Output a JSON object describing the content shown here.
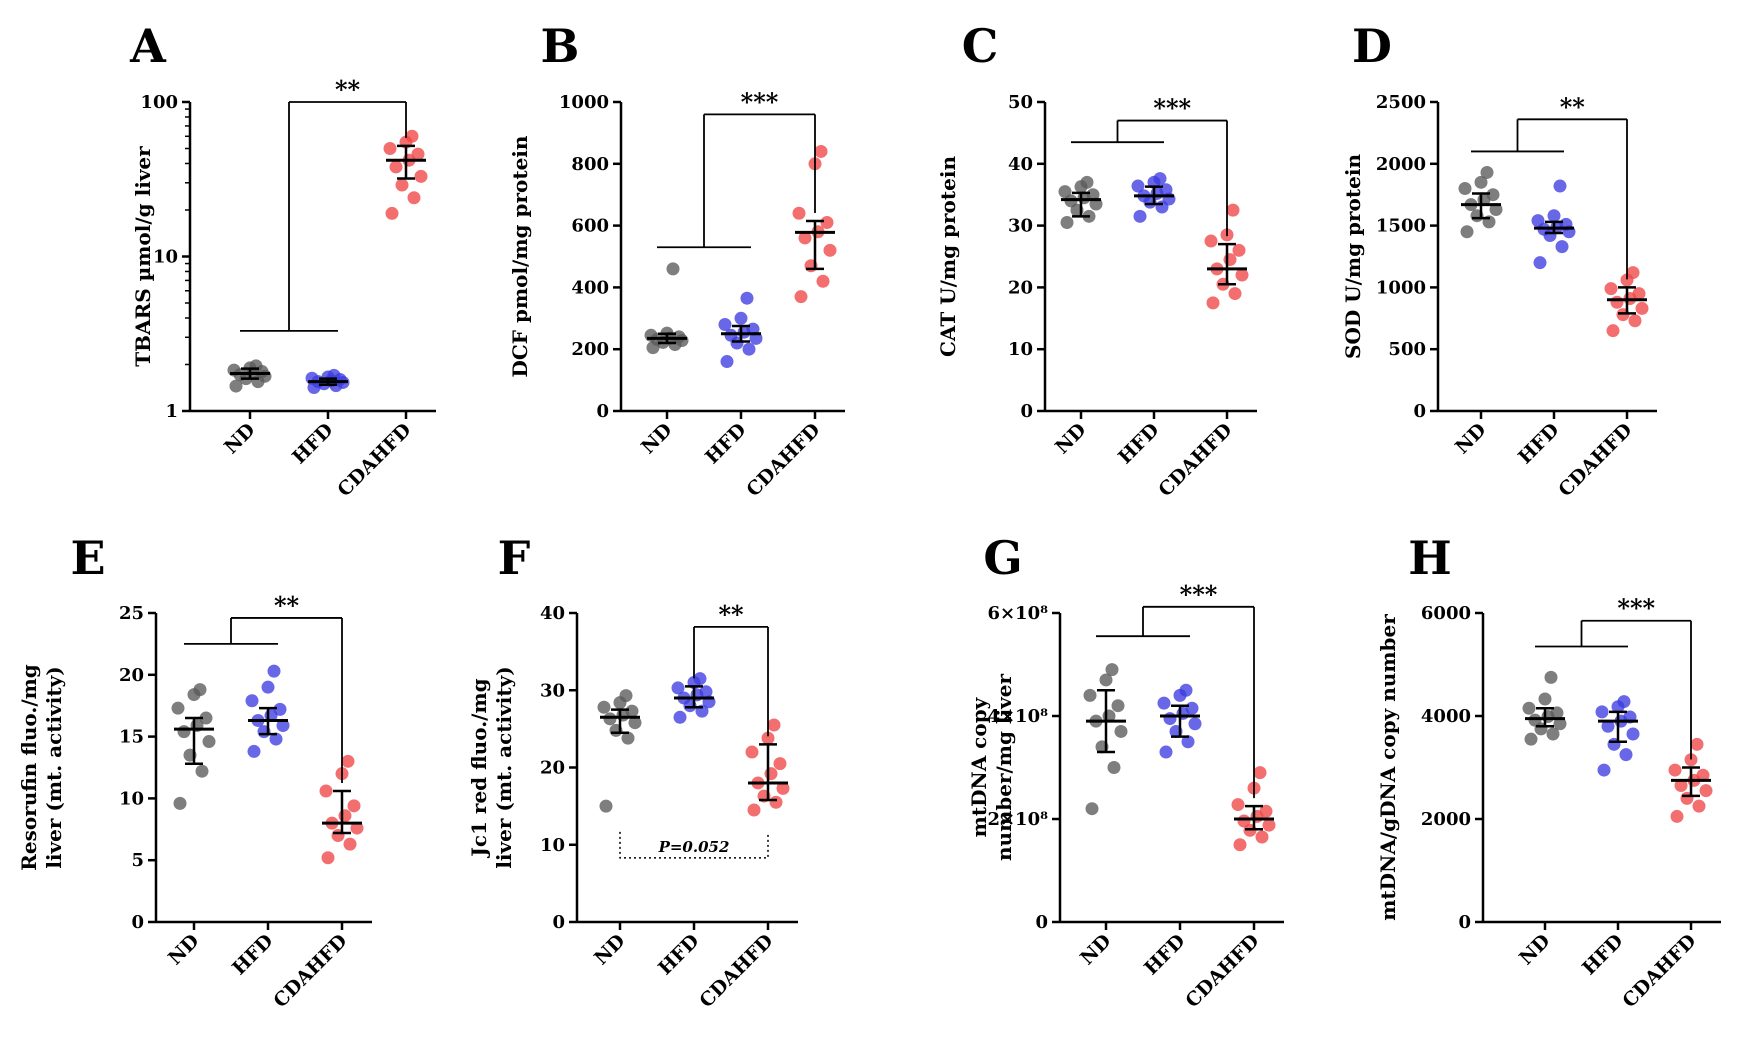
{
  "colors": {
    "ND": "#5a5a5a",
    "HFD": "#3c3ce0",
    "CDAHFD": "#f04646"
  },
  "chart_data": [
    {
      "letter": "A",
      "type": "scatter",
      "ylabel": "TBARS µmol/g liver",
      "scale": "log",
      "ylim": [
        1,
        100
      ],
      "yticks": [
        1,
        10,
        100
      ],
      "ytick_labels": [
        "1",
        "10",
        "100"
      ],
      "categories": [
        "ND",
        "HFD",
        "CDAHFD"
      ],
      "series": [
        {
          "category": "ND",
          "center": 1.75,
          "error": [
            1.62,
            1.88
          ],
          "values": [
            1.45,
            1.55,
            1.62,
            1.68,
            1.72,
            1.76,
            1.8,
            1.84,
            1.9,
            1.96
          ]
        },
        {
          "category": "HFD",
          "center": 1.55,
          "error": [
            1.48,
            1.62
          ],
          "values": [
            1.42,
            1.46,
            1.5,
            1.53,
            1.55,
            1.57,
            1.6,
            1.63,
            1.66,
            1.7
          ]
        },
        {
          "category": "CDAHFD",
          "center": 42,
          "error": [
            32,
            52
          ],
          "values": [
            19,
            24,
            29,
            33,
            38,
            42,
            46,
            50,
            55,
            60
          ]
        }
      ],
      "significance": [
        {
          "label": "**",
          "group": [
            "ND",
            "HFD"
          ],
          "target": "CDAHFD",
          "y": 3.3,
          "y_top": 100
        }
      ]
    },
    {
      "letter": "B",
      "type": "scatter",
      "ylabel": "DCF pmol/mg protein",
      "scale": "linear",
      "ylim": [
        0,
        1000
      ],
      "yticks": [
        0,
        200,
        400,
        600,
        800,
        1000
      ],
      "ytick_labels": [
        "0",
        "200",
        "400",
        "600",
        "800",
        "1000"
      ],
      "categories": [
        "ND",
        "HFD",
        "CDAHFD"
      ],
      "series": [
        {
          "category": "ND",
          "center": 235,
          "error": [
            220,
            250
          ],
          "values": [
            205,
            215,
            222,
            228,
            232,
            236,
            240,
            245,
            252,
            460
          ]
        },
        {
          "category": "HFD",
          "center": 250,
          "error": [
            225,
            275
          ],
          "values": [
            160,
            200,
            220,
            235,
            245,
            255,
            265,
            280,
            300,
            365
          ]
        },
        {
          "category": "CDAHFD",
          "center": 578,
          "error": [
            460,
            615
          ],
          "values": [
            370,
            420,
            470,
            520,
            560,
            580,
            610,
            640,
            800,
            840
          ]
        }
      ],
      "significance": [
        {
          "label": "***",
          "group": [
            "ND",
            "HFD"
          ],
          "target": "CDAHFD",
          "y": 530,
          "y_top": 960
        }
      ]
    },
    {
      "letter": "C",
      "type": "scatter",
      "ylabel": "CAT U/mg protein",
      "scale": "linear",
      "ylim": [
        0,
        50
      ],
      "yticks": [
        0,
        10,
        20,
        30,
        40,
        50
      ],
      "ytick_labels": [
        "0",
        "10",
        "20",
        "30",
        "40",
        "50"
      ],
      "categories": [
        "ND",
        "HFD",
        "CDAHFD"
      ],
      "series": [
        {
          "category": "ND",
          "center": 34.2,
          "error": [
            31.5,
            35.3
          ],
          "values": [
            30.5,
            31.5,
            32.5,
            33.5,
            34,
            34.5,
            35,
            35.5,
            36.3,
            37
          ]
        },
        {
          "category": "HFD",
          "center": 34.8,
          "error": [
            33.5,
            36.3
          ],
          "values": [
            31.5,
            33,
            33.8,
            34.3,
            34.8,
            35.2,
            35.8,
            36.4,
            37,
            37.6
          ]
        },
        {
          "category": "CDAHFD",
          "center": 23,
          "error": [
            20.5,
            27
          ],
          "values": [
            17.5,
            19,
            20.5,
            22,
            23,
            24.5,
            26,
            27.5,
            28.5,
            32.5
          ]
        }
      ],
      "significance": [
        {
          "label": "***",
          "group": [
            "ND",
            "HFD"
          ],
          "target": "CDAHFD",
          "y": 43.5,
          "y_top": 47
        }
      ]
    },
    {
      "letter": "D",
      "type": "scatter",
      "ylabel": "SOD U/mg protein",
      "scale": "linear",
      "ylim": [
        0,
        2500
      ],
      "yticks": [
        0,
        500,
        1000,
        1500,
        2000,
        2500
      ],
      "ytick_labels": [
        "0",
        "500",
        "1000",
        "1500",
        "2000",
        "2500"
      ],
      "categories": [
        "ND",
        "HFD",
        "CDAHFD"
      ],
      "series": [
        {
          "category": "ND",
          "center": 1670,
          "error": [
            1560,
            1760
          ],
          "values": [
            1450,
            1530,
            1580,
            1630,
            1670,
            1710,
            1750,
            1800,
            1850,
            1930
          ]
        },
        {
          "category": "HFD",
          "center": 1480,
          "error": [
            1440,
            1530
          ],
          "values": [
            1200,
            1330,
            1420,
            1450,
            1470,
            1490,
            1510,
            1540,
            1580,
            1820
          ]
        },
        {
          "category": "CDAHFD",
          "center": 900,
          "error": [
            790,
            1000
          ],
          "values": [
            650,
            730,
            780,
            830,
            880,
            910,
            950,
            990,
            1060,
            1120
          ]
        }
      ],
      "significance": [
        {
          "label": "**",
          "group": [
            "ND",
            "HFD"
          ],
          "target": "CDAHFD",
          "y": 2100,
          "y_top": 2360
        }
      ]
    },
    {
      "letter": "E",
      "type": "scatter",
      "ylabel": "Resorufin  fluo./mg liver (mt. activity)",
      "scale": "linear",
      "ylim": [
        0,
        25
      ],
      "yticks": [
        0,
        5,
        10,
        15,
        20,
        25
      ],
      "ytick_labels": [
        "0",
        "5",
        "10",
        "15",
        "20",
        "25"
      ],
      "categories": [
        "ND",
        "HFD",
        "CDAHFD"
      ],
      "series": [
        {
          "category": "ND",
          "center": 15.6,
          "error": [
            12.8,
            16.5
          ],
          "values": [
            9.6,
            12.2,
            13.5,
            14.6,
            15.4,
            15.9,
            16.5,
            17.3,
            18.4,
            18.8
          ]
        },
        {
          "category": "HFD",
          "center": 16.3,
          "error": [
            15.2,
            17.3
          ],
          "values": [
            13.8,
            14.8,
            15.4,
            15.9,
            16.3,
            16.7,
            17.2,
            17.9,
            19,
            20.3
          ]
        },
        {
          "category": "CDAHFD",
          "center": 8,
          "error": [
            7.2,
            10.6
          ],
          "values": [
            5.2,
            6.3,
            7,
            7.6,
            8,
            8.6,
            9.4,
            10.6,
            12,
            13
          ]
        }
      ],
      "significance": [
        {
          "label": "**",
          "group": [
            "ND",
            "HFD"
          ],
          "target": "CDAHFD",
          "y": 22.5,
          "y_top": 24.6
        }
      ]
    },
    {
      "letter": "F",
      "type": "scatter",
      "ylabel": "Jc1 red fluo./mg liver (mt. activity)",
      "scale": "linear",
      "ylim": [
        0,
        40
      ],
      "yticks": [
        0,
        10,
        20,
        30,
        40
      ],
      "ytick_labels": [
        "0",
        "10",
        "20",
        "30",
        "40"
      ],
      "categories": [
        "ND",
        "HFD",
        "CDAHFD"
      ],
      "series": [
        {
          "category": "ND",
          "center": 26.5,
          "error": [
            24.5,
            27.5
          ],
          "values": [
            15,
            23.8,
            24.8,
            25.8,
            26.3,
            26.8,
            27.3,
            27.8,
            28.4,
            29.3
          ]
        },
        {
          "category": "HFD",
          "center": 29,
          "error": [
            27.8,
            30.5
          ],
          "values": [
            26.5,
            27.3,
            28,
            28.5,
            29,
            29.4,
            29.8,
            30.3,
            31,
            31.5
          ]
        },
        {
          "category": "CDAHFD",
          "center": 18,
          "error": [
            15.8,
            23
          ],
          "values": [
            14.5,
            15.5,
            16.3,
            17.3,
            18,
            19.2,
            20.5,
            22,
            23.8,
            25.5
          ]
        }
      ],
      "significance": [
        {
          "label": "**",
          "group": [
            "HFD"
          ],
          "target": "CDAHFD",
          "y": 38.2,
          "y_top": 38.2
        }
      ],
      "p_note": {
        "label": "P=0.052",
        "from": "ND",
        "to": "CDAHFD",
        "y": 8.3
      }
    },
    {
      "letter": "G",
      "type": "scatter",
      "ylabel": "mtDNA copy number/mg liver",
      "scale": "linear",
      "ylim": [
        0,
        600000000
      ],
      "yticks": [
        0,
        200000000,
        400000000,
        600000000
      ],
      "ytick_labels": [
        "0",
        "2×10⁸",
        "4×10⁸",
        "6×10⁸"
      ],
      "categories": [
        "ND",
        "HFD",
        "CDAHFD"
      ],
      "series": [
        {
          "category": "ND",
          "center": 390000000,
          "error": [
            330000000,
            450000000
          ],
          "values": [
            220000000,
            300000000,
            340000000,
            370000000,
            390000000,
            400000000,
            420000000,
            440000000,
            470000000,
            490000000
          ]
        },
        {
          "category": "HFD",
          "center": 400000000,
          "error": [
            360000000,
            420000000
          ],
          "values": [
            330000000,
            350000000,
            370000000,
            385000000,
            395000000,
            405000000,
            415000000,
            425000000,
            440000000,
            450000000
          ]
        },
        {
          "category": "CDAHFD",
          "center": 200000000,
          "error": [
            180000000,
            225000000
          ],
          "values": [
            150000000,
            165000000,
            178000000,
            188000000,
            196000000,
            205000000,
            215000000,
            228000000,
            260000000,
            290000000
          ]
        }
      ],
      "significance": [
        {
          "label": "***",
          "group": [
            "ND",
            "HFD"
          ],
          "target": "CDAHFD",
          "y": 555000000,
          "y_top": 612000000
        }
      ]
    },
    {
      "letter": "H",
      "type": "scatter",
      "ylabel": "mtDNA/gDNA copy number",
      "scale": "linear",
      "ylim": [
        0,
        6000
      ],
      "yticks": [
        0,
        2000,
        4000,
        6000
      ],
      "ytick_labels": [
        "0",
        "2000",
        "4000",
        "6000"
      ],
      "categories": [
        "ND",
        "HFD",
        "CDAHFD"
      ],
      "series": [
        {
          "category": "ND",
          "center": 3950,
          "error": [
            3800,
            4150
          ],
          "values": [
            3550,
            3650,
            3750,
            3850,
            3920,
            3990,
            4060,
            4150,
            4330,
            4750
          ]
        },
        {
          "category": "HFD",
          "center": 3900,
          "error": [
            3500,
            4080
          ],
          "values": [
            2950,
            3250,
            3450,
            3650,
            3800,
            3900,
            3980,
            4080,
            4180,
            4280
          ]
        },
        {
          "category": "CDAHFD",
          "center": 2750,
          "error": [
            2450,
            3000
          ],
          "values": [
            2050,
            2250,
            2400,
            2550,
            2650,
            2750,
            2850,
            2950,
            3150,
            3450
          ]
        }
      ],
      "significance": [
        {
          "label": "***",
          "group": [
            "ND",
            "HFD"
          ],
          "target": "CDAHFD",
          "y": 5350,
          "y_top": 5850
        }
      ]
    }
  ]
}
